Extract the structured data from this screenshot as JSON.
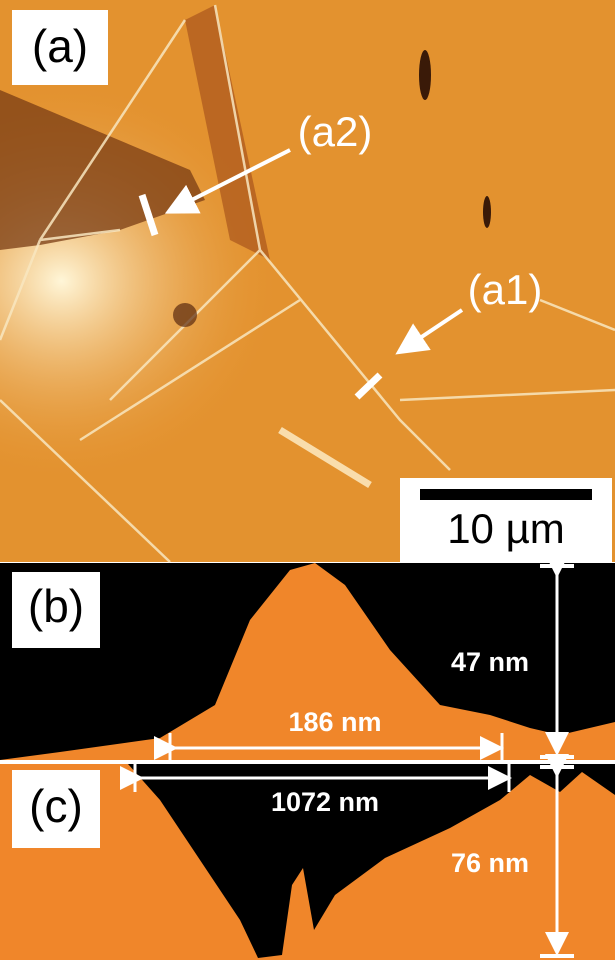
{
  "panel_a": {
    "label": "(a)",
    "marker_a2": "(a2)",
    "marker_a1": "(a1)",
    "scale_bar": "10 µm"
  },
  "panel_b": {
    "label": "(b)",
    "width": "186 nm",
    "height": "47 nm"
  },
  "panel_c": {
    "label": "(c)",
    "width": "1072 nm",
    "height": "76 nm"
  }
}
